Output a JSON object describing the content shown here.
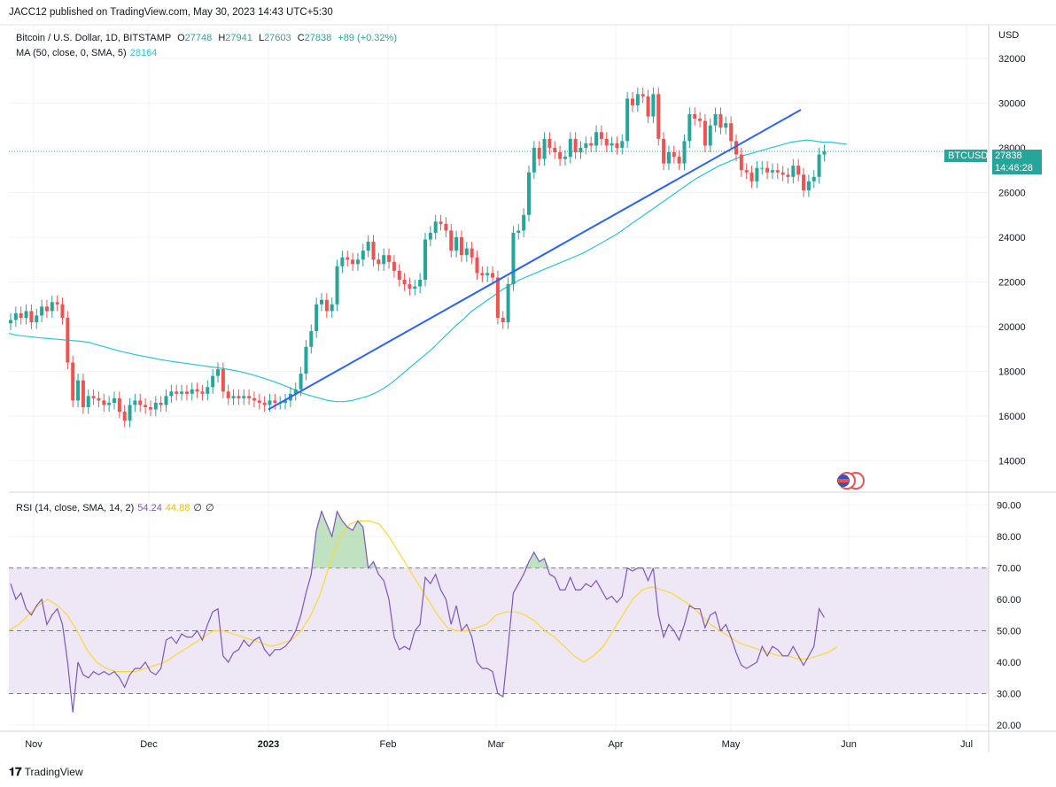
{
  "publisher_line": "JACC12 published on TradingView.com, May 30, 2023 14:43 UTC+5:30",
  "symbol_line": {
    "name": "Bitcoin / U.S. Dollar, 1D, BITSTAMP",
    "o_label": "O",
    "o": "27748",
    "h_label": "H",
    "h": "27941",
    "l_label": "L",
    "l": "27603",
    "c_label": "C",
    "c": "27838",
    "change": "+89 (+0.32%)"
  },
  "ma_line": {
    "label": "MA (50, close, 0, SMA, 5)",
    "value": "28164"
  },
  "rsi_line": {
    "label": "RSI (14, close, SMA, 14, 2)",
    "rsi": "54.24",
    "sma": "44.88",
    "z1": "∅",
    "z2": "∅"
  },
  "currency": "USD",
  "last_price": {
    "ticker": "BTCUSD",
    "price": "27838",
    "countdown": "14:46:28"
  },
  "brand": "TradingView",
  "colors": {
    "up": "#26a69a",
    "down": "#ef5350",
    "ma": "#26c6da",
    "trendline": "#2962ff",
    "rsi": "#7e57c2",
    "rsi_sma": "#fdd835",
    "rsi_band": "#ede7f6"
  },
  "chart_data": [
    {
      "type": "candlestick",
      "title": "Bitcoin / U.S. Dollar, 1D, BITSTAMP",
      "y_ticks": [
        14000,
        16000,
        18000,
        20000,
        22000,
        24000,
        26000,
        28000,
        30000,
        32000
      ],
      "ylim": [
        12600,
        33500
      ],
      "x_ticks": [
        "Nov",
        "Dec",
        "2023",
        "Feb",
        "Mar",
        "Apr",
        "May",
        "Jun",
        "Jul"
      ],
      "grid": true,
      "close_series": [
        20300,
        20600,
        20400,
        20700,
        20200,
        20500,
        20900,
        20700,
        21100,
        21000,
        20400,
        18400,
        16700,
        17600,
        16400,
        16900,
        16800,
        16700,
        16500,
        16600,
        16800,
        16200,
        15800,
        16500,
        16700,
        16500,
        16400,
        16300,
        16600,
        16500,
        16900,
        17100,
        17000,
        17100,
        17000,
        17200,
        17100,
        17000,
        17300,
        17800,
        18100,
        17100,
        16800,
        16900,
        16800,
        16900,
        16800,
        16700,
        16600,
        16500,
        16700,
        16600,
        16600,
        16700,
        17000,
        17200,
        17900,
        19100,
        19800,
        21000,
        21200,
        20700,
        21000,
        22700,
        23100,
        23000,
        22800,
        23000,
        23400,
        23800,
        23000,
        22800,
        23200,
        22900,
        22500,
        22100,
        21900,
        21700,
        21800,
        22100,
        23900,
        24200,
        24700,
        24600,
        24300,
        23400,
        24000,
        23200,
        23500,
        23100,
        22400,
        22300,
        22400,
        22200,
        20400,
        20200,
        21900,
        24200,
        24300,
        25000,
        26900,
        28000,
        27500,
        28400,
        28000,
        27800,
        27500,
        27600,
        28400,
        27800,
        28000,
        28200,
        28100,
        28700,
        28400,
        28100,
        28200,
        28000,
        28300,
        30200,
        29900,
        30400,
        30300,
        29400,
        30400,
        28400,
        27300,
        27800,
        27600,
        27300,
        28300,
        29500,
        29300,
        29200,
        28100,
        29000,
        29500,
        28900,
        29100,
        28300,
        27700,
        27000,
        26900,
        26500,
        27100,
        27100,
        26900,
        27000,
        26900,
        26800,
        26700,
        27200,
        26800,
        26100,
        26500,
        26700,
        27700,
        27838
      ],
      "ma50_series": [
        19700,
        19620,
        19580,
        19540,
        19500,
        19470,
        19440,
        19410,
        19380,
        19350,
        19300,
        19200,
        19100,
        19000,
        18900,
        18820,
        18740,
        18670,
        18600,
        18530,
        18470,
        18420,
        18370,
        18320,
        18270,
        18220,
        18170,
        18120,
        18060,
        17990,
        17900,
        17800,
        17690,
        17570,
        17440,
        17300,
        17150,
        17000,
        16900,
        16800,
        16700,
        16650,
        16650,
        16700,
        16800,
        16900,
        17050,
        17250,
        17500,
        17800,
        18100,
        18400,
        18700,
        19000,
        19350,
        19700,
        20050,
        20350,
        20700,
        20950,
        21200,
        21450,
        21700,
        21900,
        22100,
        22250,
        22400,
        22550,
        22700,
        22850,
        23000,
        23150,
        23300,
        23500,
        23700,
        23900,
        24100,
        24350,
        24600,
        24850,
        25100,
        25350,
        25600,
        25850,
        26100,
        26350,
        26600,
        26800,
        27000,
        27200,
        27350,
        27500,
        27650,
        27750,
        27850,
        27950,
        28050,
        28150,
        28250,
        28300,
        28350,
        28300,
        28250,
        28250,
        28200,
        28164
      ],
      "trendline": {
        "from": [
          16300,
          "Jan"
        ],
        "to": [
          29700,
          "late May"
        ]
      },
      "last": 27838
    },
    {
      "type": "line",
      "title": "RSI (14, close, SMA, 14, 2)",
      "y_ticks": [
        20,
        30,
        40,
        50,
        60,
        70,
        80,
        90
      ],
      "ylim": [
        18,
        93
      ],
      "bands": [
        30,
        50,
        70
      ],
      "series": [
        {
          "values": [
            65,
            60,
            62,
            57,
            55,
            58,
            60,
            52,
            55,
            57,
            52,
            40,
            24,
            40,
            36,
            35,
            37,
            36,
            37,
            36,
            37,
            35,
            32,
            36,
            38,
            38,
            40,
            37,
            36,
            38,
            47,
            48,
            46,
            49,
            48,
            48,
            50,
            47,
            52,
            56,
            57,
            42,
            40,
            43,
            44,
            47,
            45,
            47,
            48,
            44,
            42,
            44,
            44,
            45,
            47,
            50,
            55,
            62,
            68,
            82,
            88,
            84,
            80,
            88,
            85,
            83,
            82,
            85,
            83,
            70,
            72,
            68,
            66,
            60,
            48,
            44,
            45,
            44,
            50,
            52,
            67,
            65,
            68,
            63,
            60,
            52,
            58,
            50,
            52,
            48,
            40,
            38,
            38,
            37,
            30,
            29,
            45,
            62,
            65,
            68,
            72,
            75,
            72,
            73,
            68,
            67,
            63,
            63,
            67,
            63,
            63,
            65,
            64,
            66,
            63,
            60,
            61,
            59,
            61,
            70,
            69,
            70,
            70,
            66,
            70,
            55,
            48,
            52,
            50,
            47,
            52,
            58,
            57,
            57,
            51,
            55,
            56,
            50,
            52,
            48,
            43,
            39,
            38,
            39,
            40,
            45,
            42,
            45,
            44,
            42,
            42,
            45,
            42,
            39,
            42,
            45,
            57,
            54.24
          ]
        },
        {
          "values": [
            50,
            52,
            55,
            58,
            60,
            58,
            55,
            50,
            44,
            40,
            38,
            37,
            37,
            37,
            38,
            39,
            40,
            42,
            44,
            46,
            48,
            50,
            50,
            49,
            48,
            47,
            46,
            45,
            46,
            47,
            50,
            55,
            62,
            72,
            80,
            84,
            85,
            85,
            84,
            80,
            75,
            70,
            65,
            60,
            55,
            51,
            50,
            50,
            51,
            52,
            55,
            56,
            56,
            55,
            53,
            50,
            48,
            45,
            42,
            40,
            42,
            45,
            50,
            55,
            60,
            63,
            64,
            63,
            62,
            60,
            58,
            55,
            52,
            50,
            48,
            46,
            45,
            44,
            43,
            42,
            42,
            41,
            41,
            42,
            43,
            44.88
          ]
        }
      ]
    }
  ]
}
